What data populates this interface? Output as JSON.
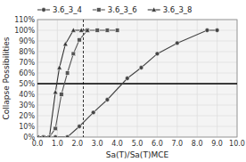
{
  "chart_data": {
    "type": "line",
    "x_label": "Sa(T)/Sa(T)MCE",
    "y_label": "Collapse Possibilities",
    "xlim": [
      0.0,
      10.0
    ],
    "ylim": [
      0.0,
      1.1
    ],
    "xticks": [
      {
        "value": 0.0,
        "label": "0.0"
      },
      {
        "value": 1.0,
        "label": "1.0"
      },
      {
        "value": 2.0,
        "label": "2.0"
      },
      {
        "value": 3.0,
        "label": "3.0"
      },
      {
        "value": 4.0,
        "label": "4.0"
      },
      {
        "value": 5.0,
        "label": "5.0"
      },
      {
        "value": 6.0,
        "label": "6.0"
      },
      {
        "value": 7.0,
        "label": "7.0"
      },
      {
        "value": 8.0,
        "label": "8.0"
      },
      {
        "value": 9.0,
        "label": "9.0"
      },
      {
        "value": 10.0,
        "label": "10.0"
      }
    ],
    "yticks": [
      {
        "value": 0.0,
        "label": "0%"
      },
      {
        "value": 0.1,
        "label": "10%"
      },
      {
        "value": 0.2,
        "label": "20%"
      },
      {
        "value": 0.3,
        "label": "30%"
      },
      {
        "value": 0.4,
        "label": "40%"
      },
      {
        "value": 0.5,
        "label": "50%"
      },
      {
        "value": 0.6,
        "label": "60%"
      },
      {
        "value": 0.7,
        "label": "70%"
      },
      {
        "value": 0.8,
        "label": "80%"
      },
      {
        "value": 0.9,
        "label": "90%"
      },
      {
        "value": 1.0,
        "label": "100%"
      },
      {
        "value": 1.1,
        "label": "110%"
      }
    ],
    "grid": true,
    "legend": "top",
    "hline": 0.5,
    "vline": 2.3,
    "series": [
      {
        "name": "3.6_3_4",
        "color": "#444444",
        "marker": "circle",
        "x": [
          0.0,
          0.3,
          0.6,
          0.9,
          1.5,
          2.1,
          2.8,
          3.5,
          4.5,
          5.2,
          6.0,
          7.0,
          8.5,
          9.0
        ],
        "values": [
          0.0,
          0.0,
          0.0,
          0.0,
          0.0,
          0.1,
          0.23,
          0.35,
          0.55,
          0.65,
          0.78,
          0.88,
          1.0,
          1.0
        ]
      },
      {
        "name": "3.6_3_6",
        "color": "#555555",
        "marker": "square",
        "x": [
          0.0,
          0.3,
          0.6,
          0.9,
          1.2,
          1.5,
          1.8,
          2.1,
          2.5,
          3.0,
          3.5,
          4.0
        ],
        "values": [
          0.0,
          0.0,
          0.0,
          0.08,
          0.4,
          0.6,
          0.78,
          0.91,
          1.0,
          1.0,
          1.0,
          1.0
        ]
      },
      {
        "name": "3.6_3_8",
        "color": "#333333",
        "marker": "triangle",
        "x": [
          0.0,
          0.3,
          0.6,
          0.9,
          1.1,
          1.4,
          1.8,
          2.2,
          2.5
        ],
        "values": [
          0.0,
          0.0,
          0.0,
          0.42,
          0.65,
          0.87,
          1.0,
          1.0,
          1.0
        ]
      }
    ]
  }
}
